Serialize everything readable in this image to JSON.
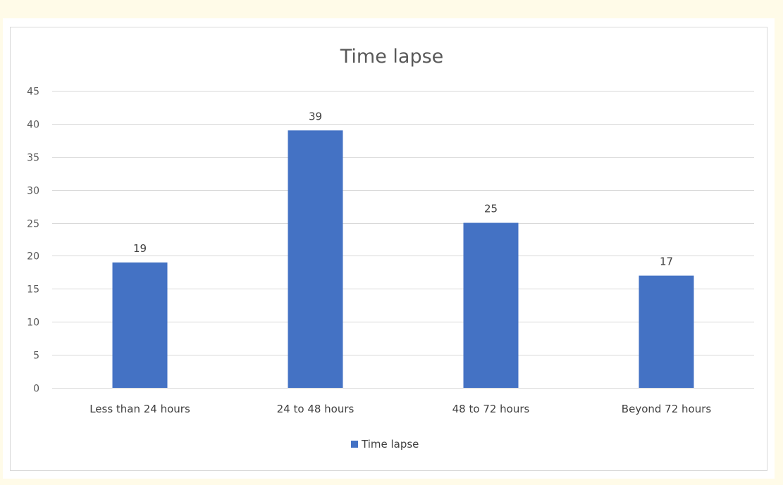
{
  "chart_data": {
    "type": "bar",
    "title": "Time lapse",
    "categories": [
      "Less than 24 hours",
      "24 to 48 hours",
      "48 to 72 hours",
      "Beyond 72 hours"
    ],
    "series": [
      {
        "name": "Time lapse",
        "values": [
          19,
          39,
          25,
          17
        ],
        "color": "#4472c4"
      }
    ],
    "ylim": [
      0,
      45
    ],
    "ytick_step": 5,
    "yticks": [
      "0",
      "5",
      "10",
      "15",
      "20",
      "25",
      "30",
      "35",
      "40",
      "45"
    ],
    "grid": true,
    "data_labels": true,
    "legend": "bottom",
    "colors": {
      "bar": "#4472c4",
      "grid": "#d9d9d9",
      "border": "#d9d9d9",
      "page_background": "#fffbe8"
    }
  }
}
